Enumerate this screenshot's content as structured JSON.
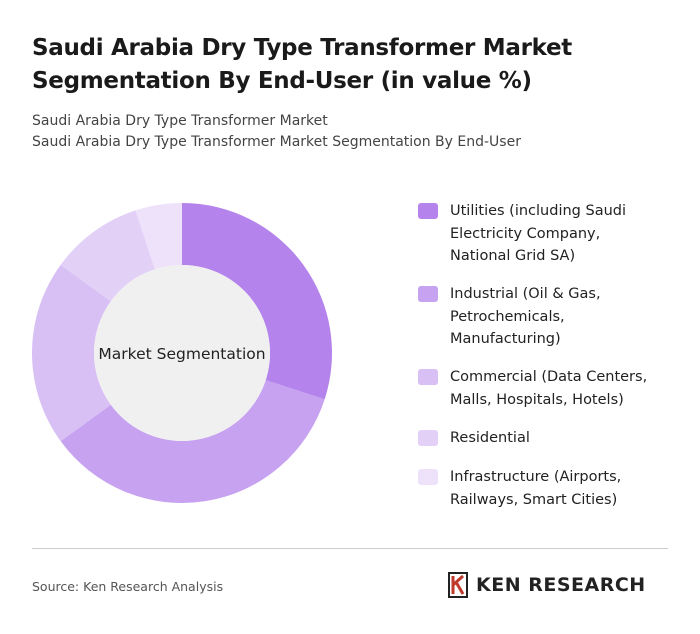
{
  "header": {
    "title": "Saudi Arabia Dry Type Transformer Market Segmentation By End-User (in value %)",
    "subtitle": [
      "Saudi Arabia Dry Type Transformer Market",
      "Saudi Arabia Dry Type Transformer Market Segmentation By End-User"
    ]
  },
  "chart_data": {
    "type": "donut",
    "categories": [
      "Utilities (including Saudi Electricity Company, National Grid SA)",
      "Industrial (Oil & Gas, Petrochemicals, Manufacturing)",
      "Commercial (Data Centers, Malls, Hospitals, Hotels)",
      "Residential",
      "Infrastructure (Airports, Railways, Smart Cities)"
    ],
    "values": [
      30,
      35,
      20,
      10,
      5
    ],
    "colors": [
      "#b583ec",
      "#c7a2f0",
      "#d8c0f5",
      "#e2d0f7",
      "#ede2fa"
    ],
    "center_label": "Market Segmentation"
  },
  "footer": {
    "source": "Source: Ken Research Analysis",
    "brand": "KEN RESEARCH"
  }
}
